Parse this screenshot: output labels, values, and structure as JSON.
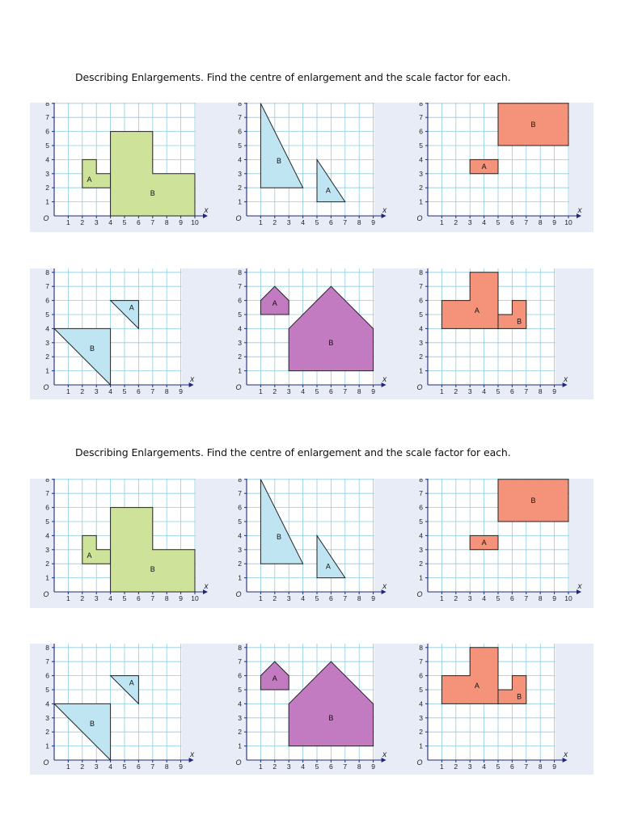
{
  "worksheet": {
    "heading": "Describing Enlargements. Find the centre of enlargement and the scale factor for each."
  },
  "colors": {
    "panel_bg": "#e8ecf7",
    "grid": "#8fcde0",
    "axis": "#1e2a78",
    "green_fill": "#cfe29a",
    "blue_fill": "#bfe4f2",
    "orange_fill": "#f4937a",
    "purple_fill": "#c27ac0",
    "outline": "#222222"
  },
  "axis_labels": {
    "x": "x",
    "y": "y",
    "origin": "O"
  },
  "set1": [
    {
      "part": "a",
      "x_max": 10,
      "y_max": 9,
      "color": "green",
      "shapes": [
        {
          "label": "A",
          "points": [
            [
              2,
              2
            ],
            [
              2,
              4
            ],
            [
              3,
              4
            ],
            [
              3,
              3
            ],
            [
              4,
              3
            ],
            [
              4,
              2
            ]
          ],
          "label_at": [
            2.5,
            2.6
          ]
        },
        {
          "label": "B",
          "points": [
            [
              4,
              0
            ],
            [
              4,
              6
            ],
            [
              7,
              6
            ],
            [
              7,
              3
            ],
            [
              10,
              3
            ],
            [
              10,
              0
            ]
          ],
          "label_at": [
            7,
            1.6
          ]
        }
      ]
    },
    {
      "part": "b",
      "x_max": 9,
      "y_max": 9,
      "color": "blue",
      "shapes": [
        {
          "label": "B",
          "points": [
            [
              1,
              2
            ],
            [
              1,
              8
            ],
            [
              4,
              2
            ]
          ],
          "label_at": [
            2.3,
            3.9
          ]
        },
        {
          "label": "A",
          "points": [
            [
              5,
              1
            ],
            [
              5,
              4
            ],
            [
              7,
              1
            ]
          ],
          "label_at": [
            5.8,
            1.8
          ]
        }
      ]
    },
    {
      "part": "c",
      "x_max": 10,
      "y_max": 9,
      "color": "orange",
      "shapes": [
        {
          "label": "A",
          "points": [
            [
              3,
              3
            ],
            [
              3,
              4
            ],
            [
              5,
              4
            ],
            [
              5,
              3
            ]
          ],
          "label_at": [
            4,
            3.5
          ]
        },
        {
          "label": "B",
          "points": [
            [
              5,
              5
            ],
            [
              5,
              8
            ],
            [
              10,
              8
            ],
            [
              10,
              5
            ]
          ],
          "label_at": [
            7.5,
            6.5
          ]
        }
      ]
    }
  ],
  "set2": [
    {
      "part": "a",
      "x_max": 9,
      "y_max": 9,
      "color": "blue",
      "shapes": [
        {
          "label": "B",
          "points": [
            [
              0,
              4
            ],
            [
              4,
              4
            ],
            [
              4,
              0
            ]
          ],
          "label_at": [
            2.7,
            2.6
          ]
        },
        {
          "label": "A",
          "points": [
            [
              4,
              6
            ],
            [
              6,
              6
            ],
            [
              6,
              4
            ]
          ],
          "label_at": [
            5.5,
            5.5
          ]
        }
      ]
    },
    {
      "part": "b",
      "x_max": 9,
      "y_max": 9,
      "color": "purple",
      "shapes": [
        {
          "label": "A",
          "points": [
            [
              1,
              5
            ],
            [
              1,
              6
            ],
            [
              2,
              7
            ],
            [
              3,
              6
            ],
            [
              3,
              5
            ]
          ],
          "label_at": [
            2,
            5.8
          ]
        },
        {
          "label": "B",
          "points": [
            [
              3,
              1
            ],
            [
              3,
              4
            ],
            [
              6,
              7
            ],
            [
              9,
              4
            ],
            [
              9,
              1
            ]
          ],
          "label_at": [
            6,
            3
          ]
        }
      ]
    },
    {
      "part": "c",
      "x_max": 9,
      "y_max": 9,
      "color": "orange",
      "shapes": [
        {
          "label": "A",
          "points": [
            [
              1,
              4
            ],
            [
              1,
              6
            ],
            [
              3,
              6
            ],
            [
              3,
              8
            ],
            [
              5,
              8
            ],
            [
              5,
              4
            ]
          ],
          "label_at": [
            3.5,
            5.3
          ]
        },
        {
          "label": "B",
          "points": [
            [
              5,
              4
            ],
            [
              5,
              5
            ],
            [
              6,
              5
            ],
            [
              6,
              6
            ],
            [
              7,
              6
            ],
            [
              7,
              4
            ]
          ],
          "label_at": [
            6.5,
            4.5
          ]
        }
      ]
    }
  ]
}
